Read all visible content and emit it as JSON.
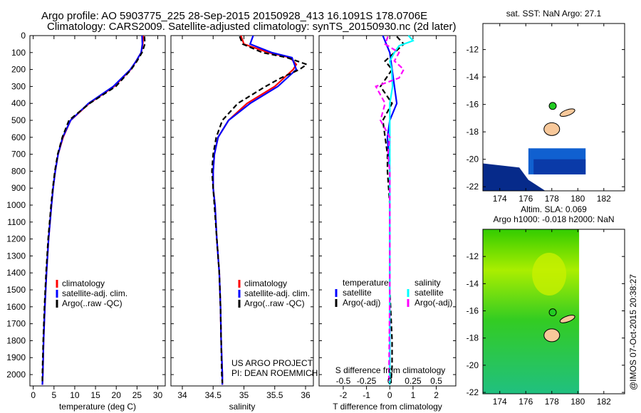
{
  "title_line1": "Argo profile: AO 5903775_225 28-Sep-2015 20150928_413 16.1091S 178.0706E",
  "title_line2": "Climatology: CARS2009. Satellite-adjusted climatology: synTS_20150930.nc (2d later)",
  "credit": "@IMOS 07-Oct-2015 20:38:27",
  "project": [
    "US ARGO PROJECT",
    "PI: DEAN ROEMMICH"
  ],
  "colors": {
    "climatology": "#ff0000",
    "satellite": "#0000ff",
    "argo": "#000000",
    "s_sat": "#00ffff",
    "s_argo": "#ff00ff"
  },
  "chart_data": [
    {
      "type": "line",
      "name": "temperature-profile",
      "xlabel": "temperature (deg C)",
      "xlim": [
        -0.8,
        31.8
      ],
      "ylim": [
        2067,
        0
      ],
      "xticks": [
        0,
        5,
        10,
        15,
        20,
        25,
        30
      ],
      "yticks": [
        0,
        100,
        200,
        300,
        400,
        500,
        600,
        700,
        800,
        900,
        1000,
        1100,
        1200,
        1300,
        1400,
        1500,
        1600,
        1700,
        1800,
        1900,
        2000
      ],
      "legend": [
        "climatology",
        "satellite-adj. clim.",
        "Argo(..raw -QC)"
      ],
      "series": [
        {
          "name": "climatology",
          "depth": [
            0,
            50,
            100,
            150,
            200,
            300,
            400,
            500,
            600,
            700,
            800,
            900,
            1000,
            1200,
            1400,
            1600,
            1800,
            2000,
            2060
          ],
          "values": [
            26.5,
            26.4,
            26.0,
            24.8,
            23.5,
            19.5,
            13.5,
            9.0,
            7.2,
            6.0,
            5.3,
            4.8,
            4.4,
            3.7,
            3.2,
            2.8,
            2.5,
            2.3,
            2.2
          ]
        },
        {
          "name": "satellite-adj. clim.",
          "depth": [
            0,
            50,
            100,
            150,
            200,
            300,
            400,
            500,
            600,
            700,
            800,
            900,
            1000,
            1200,
            1400,
            1600,
            1800,
            2000,
            2060
          ],
          "values": [
            26.2,
            26.3,
            26.0,
            24.8,
            23.4,
            19.3,
            13.3,
            9.0,
            7.1,
            6.0,
            5.3,
            4.8,
            4.4,
            3.7,
            3.2,
            2.8,
            2.5,
            2.3,
            2.2
          ]
        },
        {
          "name": "Argo(..raw -QC)",
          "depth": [
            5,
            50,
            100,
            150,
            200,
            300,
            400,
            500,
            600,
            700,
            800,
            900,
            1000,
            1200,
            1400,
            1600,
            1800,
            2000,
            2050
          ],
          "values": [
            26.8,
            26.9,
            26.2,
            25.0,
            23.6,
            19.9,
            13.6,
            8.6,
            7.0,
            5.9,
            5.2,
            4.7,
            4.3,
            3.6,
            3.1,
            2.7,
            2.4,
            2.2,
            2.2
          ]
        }
      ]
    },
    {
      "type": "line",
      "name": "salinity-profile",
      "xlabel": "salinity",
      "xlim": [
        33.815,
        36.127
      ],
      "ylim": [
        2067,
        0
      ],
      "xticks": [
        34,
        34.5,
        35,
        35.5,
        36
      ],
      "legend": [
        "climatology",
        "satellite-adj. clim.",
        "Argo(..raw -QC)"
      ],
      "series": [
        {
          "name": "climatology",
          "depth": [
            0,
            50,
            100,
            130,
            170,
            200,
            250,
            300,
            400,
            500,
            600,
            700,
            800,
            900,
            1000,
            1200,
            1400,
            1600,
            1800,
            2000,
            2060
          ],
          "values": [
            34.95,
            35.0,
            35.4,
            35.75,
            35.85,
            35.8,
            35.65,
            35.5,
            35.05,
            34.75,
            34.58,
            34.52,
            34.5,
            34.5,
            34.53,
            34.56,
            34.6,
            34.62,
            34.63,
            34.65,
            34.65
          ]
        },
        {
          "name": "satellite-adj. clim.",
          "depth": [
            0,
            50,
            100,
            130,
            170,
            200,
            250,
            300,
            400,
            500,
            600,
            700,
            800,
            900,
            1000,
            1200,
            1400,
            1600,
            1800,
            2000,
            2060
          ],
          "values": [
            35.15,
            35.1,
            35.45,
            35.78,
            35.82,
            35.85,
            35.7,
            35.55,
            35.1,
            34.75,
            34.58,
            34.52,
            34.5,
            34.5,
            34.53,
            34.56,
            34.6,
            34.62,
            34.63,
            34.65,
            34.65
          ]
        },
        {
          "name": "Argo(..raw -QC)",
          "depth": [
            5,
            50,
            100,
            130,
            170,
            200,
            250,
            300,
            400,
            500,
            600,
            700,
            800,
            900,
            1000,
            1200,
            1400,
            1600,
            1800,
            2000,
            2050
          ],
          "values": [
            34.93,
            34.98,
            35.3,
            35.7,
            36.02,
            35.9,
            35.6,
            35.35,
            34.9,
            34.65,
            34.55,
            34.5,
            34.48,
            34.5,
            34.52,
            34.56,
            34.6,
            34.62,
            34.63,
            34.64,
            34.65
          ]
        }
      ]
    },
    {
      "type": "line",
      "name": "difference-profile",
      "xlabel": "T difference from climatology",
      "x2label": "S difference from climatology",
      "xlim": [
        -3.04,
        2.84
      ],
      "xticks": [
        -2,
        -1,
        0,
        1,
        2
      ],
      "x2ticks": [
        -0.5,
        -0.25,
        0,
        0.25,
        0.5
      ],
      "x2ticklabels": [
        "-0.5",
        "-0.25",
        "0",
        "0.25",
        "0.5"
      ],
      "legend_t_title": "temperature",
      "legend_s_title": "salinity",
      "legend": [
        "satellite",
        "Argo(-adj)",
        "satellite",
        "Argo(-adj)"
      ],
      "series": [
        {
          "name": "T satellite",
          "unit": "T",
          "depth": [
            0,
            100,
            200,
            300,
            400,
            500,
            600,
            800,
            1000,
            1500,
            2060
          ],
          "values": [
            -0.3,
            0.0,
            0.1,
            0.2,
            0.3,
            0.0,
            -0.1,
            0.0,
            0.0,
            0.0,
            0.0
          ]
        },
        {
          "name": "T Argo(-adj)",
          "unit": "T",
          "depth": [
            5,
            50,
            100,
            150,
            200,
            300,
            400,
            500,
            700,
            800,
            1000,
            1500,
            1800,
            1950,
            2050
          ],
          "values": [
            0.3,
            0.6,
            0.2,
            -0.2,
            0.1,
            -0.4,
            0.1,
            -0.3,
            -0.1,
            -0.1,
            0.0,
            0.0,
            0.1,
            0.1,
            0.05
          ]
        },
        {
          "name": "S satellite",
          "unit": "S",
          "depth": [
            0,
            30,
            60,
            100,
            150,
            200,
            300,
            400,
            600,
            1000,
            1500,
            2060
          ],
          "values": [
            0.2,
            0.25,
            0.1,
            0.05,
            0.0,
            0.02,
            0.03,
            0.0,
            0.0,
            0.0,
            0.0,
            0.0
          ]
        },
        {
          "name": "S Argo(-adj)",
          "unit": "S",
          "depth": [
            5,
            50,
            100,
            150,
            200,
            250,
            300,
            400,
            500,
            600,
            700,
            800,
            1000,
            1500,
            2050
          ],
          "values": [
            -0.02,
            -0.05,
            0.1,
            0.05,
            0.15,
            0.1,
            -0.15,
            -0.05,
            -0.1,
            0.0,
            -0.02,
            0.0,
            0.0,
            0.0,
            -0.01
          ]
        }
      ]
    },
    {
      "type": "map",
      "name": "sst-map",
      "title": "sat. SST: NaN Argo: 27.1",
      "xlim": [
        172.7,
        183.6
      ],
      "ylim": [
        -10.1,
        -22.3
      ],
      "xticks": [
        174,
        176,
        178,
        180,
        182
      ],
      "yticks": [
        -12,
        -14,
        -16,
        -18,
        -20,
        -22
      ],
      "argo_position": [
        178.07,
        -16.11
      ]
    },
    {
      "type": "map",
      "name": "sla-map",
      "title": [
        "Altim. SLA: 0.069",
        "Argo h1000: -0.018 h2000: NaN"
      ],
      "xlim": [
        172.7,
        183.6
      ],
      "ylim": [
        -10,
        -22.1
      ],
      "xticks": [
        174,
        176,
        178,
        180,
        182
      ],
      "yticks": [
        -12,
        -14,
        -16,
        -18,
        -20,
        -22
      ],
      "argo_position": [
        178.07,
        -16.11
      ]
    }
  ]
}
